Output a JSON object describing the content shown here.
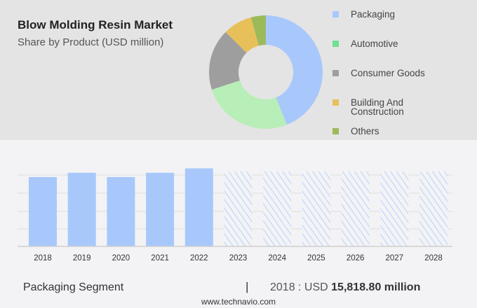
{
  "title": "Blow Molding Resin Market",
  "subtitle": "Share by Product (USD million)",
  "footer": {
    "segment": "Packaging Segment",
    "separator": "|",
    "year_label": "2018 : USD ",
    "value": "15,818.80 million",
    "website": "www.technavio.com"
  },
  "chart_data": [
    {
      "type": "pie",
      "donut": true,
      "title": "Blow Molding Resin Market",
      "subtitle": "Share by Product (USD million)",
      "categories": [
        "Packaging",
        "Automotive",
        "Consumer Goods",
        "Building And Construction",
        "Others"
      ],
      "values": [
        44,
        26,
        17.5,
        8.3,
        4.2
      ],
      "colors": [
        "#a8c8fc",
        "#b8eeb8",
        "#9e9e9e",
        "#e8c05a",
        "#9cba5a"
      ],
      "legend_colors": [
        "#a8c8fc",
        "#70e090",
        "#9e9e9e",
        "#e8c05a",
        "#9cba5a"
      ],
      "legend": "right"
    },
    {
      "type": "bar",
      "categories": [
        "2018",
        "2019",
        "2020",
        "2021",
        "2022",
        "2023",
        "2024",
        "2025",
        "2026",
        "2027",
        "2028"
      ],
      "values": [
        15818.8,
        16800,
        15818.8,
        16800,
        17800,
        null,
        null,
        null,
        null,
        null,
        null
      ],
      "forecast": [
        "2023",
        "2024",
        "2025",
        "2026",
        "2027",
        "2028"
      ],
      "series_name": "Packaging Segment",
      "bar_color": "#a8c8fc",
      "grid": true,
      "ylim": [
        0,
        21000
      ]
    }
  ]
}
